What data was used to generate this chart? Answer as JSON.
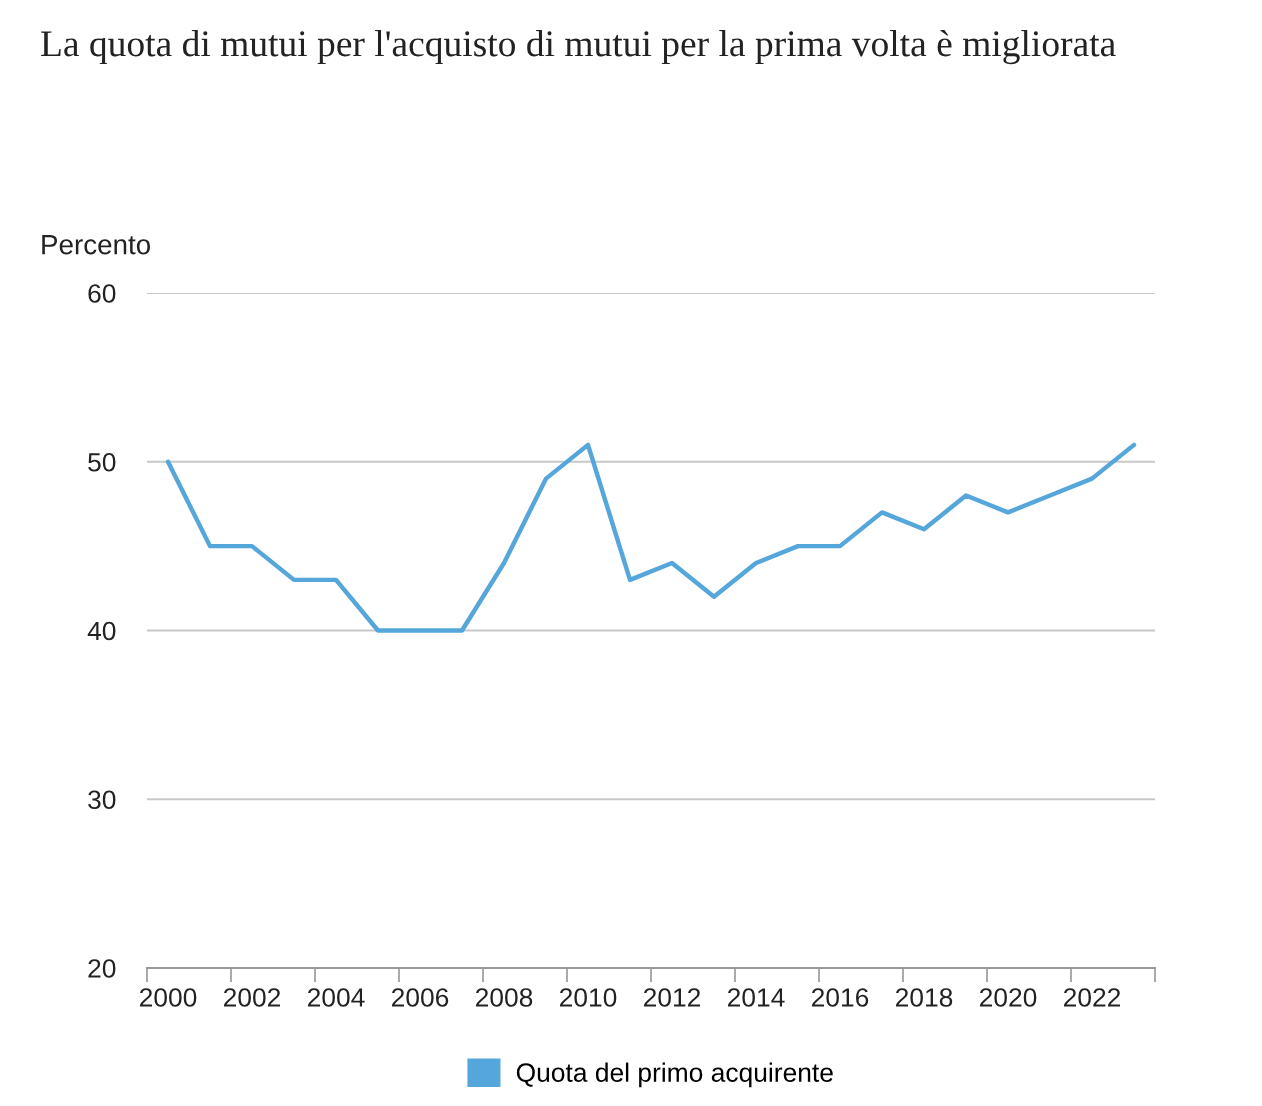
{
  "chart_data": {
    "type": "line",
    "title": "La quota di mutui per l'acquisto di mutui per la prima volta è migliorata",
    "ylabel": "Percento",
    "x": [
      2000,
      2001,
      2002,
      2003,
      2004,
      2005,
      2006,
      2007,
      2008,
      2009,
      2010,
      2011,
      2012,
      2013,
      2014,
      2015,
      2016,
      2017,
      2018,
      2019,
      2020,
      2021,
      2022,
      2023
    ],
    "series": [
      {
        "name": "Quota del primo acquirente",
        "color": "#55a6db",
        "values": [
          50,
          45,
          45,
          43,
          43,
          40,
          40,
          40,
          44,
          49,
          51,
          43,
          44,
          42,
          44,
          45,
          45,
          47,
          46,
          48,
          47,
          48,
          49,
          51
        ]
      }
    ],
    "xlim": [
      1999.5,
      2023.5
    ],
    "xticks": [
      {
        "value": 1999.5,
        "label": null
      },
      {
        "value": 2000,
        "label": "2000"
      },
      {
        "value": 2001.5,
        "label": null
      },
      {
        "value": 2002,
        "label": "2002"
      },
      {
        "value": 2003.5,
        "label": null
      },
      {
        "value": 2004,
        "label": "2004"
      },
      {
        "value": 2005.5,
        "label": null
      },
      {
        "value": 2006,
        "label": "2006"
      },
      {
        "value": 2007.5,
        "label": null
      },
      {
        "value": 2008,
        "label": "2008"
      },
      {
        "value": 2009.5,
        "label": null
      },
      {
        "value": 2010,
        "label": "2010"
      },
      {
        "value": 2011.5,
        "label": null
      },
      {
        "value": 2012,
        "label": "2012"
      },
      {
        "value": 2013.5,
        "label": null
      },
      {
        "value": 2014,
        "label": "2014"
      },
      {
        "value": 2015.5,
        "label": null
      },
      {
        "value": 2016,
        "label": "2016"
      },
      {
        "value": 2017.5,
        "label": null
      },
      {
        "value": 2018,
        "label": "2018"
      },
      {
        "value": 2019.5,
        "label": null
      },
      {
        "value": 2020,
        "label": "2020"
      },
      {
        "value": 2021.5,
        "label": null
      },
      {
        "value": 2022,
        "label": "2022"
      },
      {
        "value": 2023.5,
        "label": null
      }
    ],
    "ylim": [
      20,
      60
    ],
    "yticks": [
      20,
      30,
      40,
      50,
      60
    ],
    "grid": "y",
    "legend": "bottom",
    "marker": "none",
    "line_style": "solid"
  }
}
